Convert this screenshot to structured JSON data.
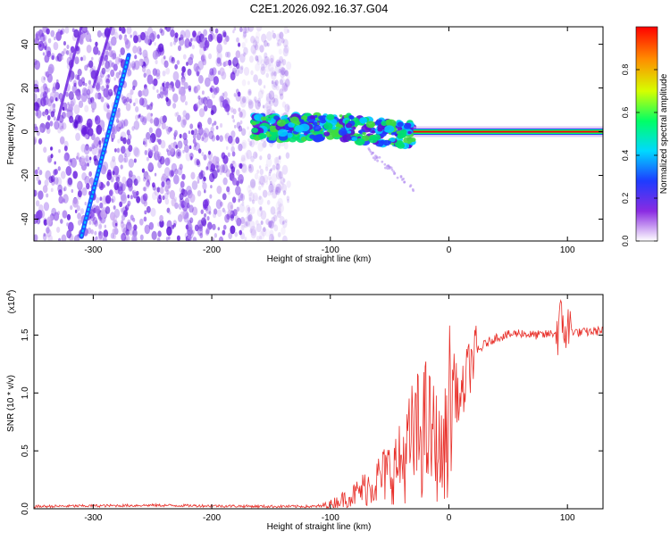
{
  "page": {
    "title": "C2E1.2026.092.16.37.G04"
  },
  "colorbar": {
    "label": "Normalized spectral amplitude",
    "ticks": [
      "0.0",
      "0.2",
      "0.4",
      "0.6",
      "0.8"
    ],
    "colors": [
      "#ffffff",
      "#8a2be2",
      "#1e3cff",
      "#00d9ff",
      "#00ff66",
      "#d6ff00",
      "#ff8c00",
      "#ff0000"
    ]
  },
  "chart_data": [
    {
      "type": "heatmap",
      "xlabel": "Height of straight line (km)",
      "ylabel": "Frequency (Hz)",
      "xlim": [
        -350,
        130
      ],
      "ylim": [
        -50,
        48
      ],
      "xticks": [
        -300,
        -200,
        -100,
        0,
        100
      ],
      "yticks": [
        -40,
        -20,
        0,
        20,
        40
      ],
      "xtick_labels": [
        "-300",
        "-200",
        "-100",
        "0",
        "100"
      ],
      "ytick_labels": [
        "-40",
        "-20",
        "0",
        "20",
        "40"
      ],
      "colorscale_range": [
        0,
        1
      ],
      "features": {
        "diffuse_noise_region_x": [
          -350,
          -135
        ],
        "diagonal_streak": {
          "x": [
            -310,
            -270
          ],
          "y": [
            -48,
            35
          ]
        },
        "faint_streaks": [
          {
            "x": [
              -330,
              -310
            ],
            "y": [
              5,
              48
            ]
          },
          {
            "x": [
              -300,
              -285
            ],
            "y": [
              20,
              48
            ]
          }
        ],
        "noisy_band_x": [
          -165,
          -30
        ],
        "noisy_band_y": [
          -8,
          6
        ],
        "strong_line": {
          "x": [
            -30,
            130
          ],
          "y": 0
        }
      }
    },
    {
      "type": "line",
      "xlabel": "Height of straight line (km)",
      "ylabel": "SNR (10 * v/v)",
      "y_multiplier_label": "(x10",
      "y_multiplier_exponent": "4",
      "xlim": [
        -350,
        130
      ],
      "ylim": [
        0,
        1.85
      ],
      "xticks": [
        -300,
        -200,
        -100,
        0,
        100
      ],
      "yticks": [
        0,
        0.5,
        1.0,
        1.5
      ],
      "xtick_labels": [
        "-300",
        "-200",
        "-100",
        "0",
        "100"
      ],
      "ytick_labels": [
        "0.0",
        "0.5",
        "1.0",
        "1.5"
      ],
      "series": [
        {
          "color": "#e8302a",
          "x": [
            -350,
            -300,
            -250,
            -200,
            -150,
            -110,
            -100,
            -80,
            -60,
            -40,
            -30,
            -20,
            -10,
            -5,
            0,
            5,
            10,
            15,
            20,
            30,
            40,
            50,
            60,
            70,
            80,
            90,
            95,
            100,
            110,
            120,
            130
          ],
          "y": [
            0.02,
            0.025,
            0.03,
            0.025,
            0.02,
            0.02,
            0.04,
            0.12,
            0.25,
            0.4,
            0.6,
            0.7,
            0.55,
            0.4,
            0.85,
            1.05,
            0.9,
            1.15,
            1.3,
            1.42,
            1.48,
            1.5,
            1.52,
            1.5,
            1.5,
            1.52,
            1.6,
            1.55,
            1.52,
            1.53,
            1.54
          ]
        }
      ]
    }
  ]
}
